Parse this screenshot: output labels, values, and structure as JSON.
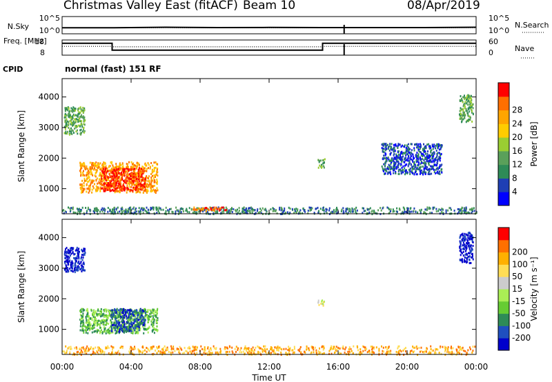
{
  "header": {
    "title": "Christmas Valley East (fitACF)",
    "beam": "Beam 10",
    "date": "08/Apr/2019"
  },
  "chart_data": [
    {
      "type": "line",
      "title": "",
      "left_label": "N.Sky",
      "right_label": "N.Search",
      "left_ticks": [
        "10^5",
        "10^0"
      ],
      "right_ticks": [
        "10^5",
        "10^0"
      ],
      "series": [
        {
          "name": "N.Sky",
          "style": "solid",
          "x": [
            0,
            3,
            6,
            9,
            12,
            15,
            16.3,
            16.4,
            18,
            21,
            24
          ],
          "y_frac": [
            0.35,
            0.35,
            0.38,
            0.36,
            0.37,
            0.36,
            0.36,
            0.36,
            0.36,
            0.36,
            0.38
          ]
        },
        {
          "name": "N.Search",
          "style": "dotted",
          "x": [
            0,
            24
          ],
          "y_frac": [
            0.35,
            0.35
          ]
        }
      ]
    },
    {
      "type": "line",
      "title": "",
      "left_label": "Freq. [MHz]",
      "right_label": "Nave",
      "left_ticks": [
        "18",
        "8"
      ],
      "right_ticks": [
        "60",
        "0"
      ],
      "series": [
        {
          "name": "Freq.",
          "style": "solid",
          "x": [
            0,
            2.9,
            2.9,
            15.1,
            15.1,
            24
          ],
          "y": [
            15.8,
            15.8,
            11.3,
            11.3,
            15.8,
            15.8
          ]
        },
        {
          "name": "Nave",
          "style": "dotted",
          "x": [
            0,
            2.9,
            2.9,
            15.1,
            15.1,
            24
          ],
          "y": [
            35,
            35,
            33,
            33,
            35,
            35
          ]
        }
      ]
    },
    {
      "type": "text",
      "left_label": "CPID",
      "value": "normal (fast) 151 RF"
    },
    {
      "type": "heatmap",
      "parameter": "power",
      "ylabel": "Slant Range [km]",
      "xlim": [
        0,
        24
      ],
      "ylim": [
        180,
        4600
      ],
      "yticks": [
        1000,
        2000,
        3000,
        4000
      ],
      "colorbar": {
        "label": "Power [dB]",
        "ticks": [
          "4",
          "8",
          "12",
          "16",
          "20",
          "24",
          "28"
        ],
        "colors": [
          "#0000ff",
          "#1f3fb4",
          "#2e8b57",
          "#5aa05a",
          "#9acd32",
          "#ffcc00",
          "#ffa500",
          "#ff6f00",
          "#ff0000"
        ]
      },
      "regions": [
        {
          "x": [
            1.0,
            5.5
          ],
          "y": [
            900,
            1900
          ],
          "level": 6
        },
        {
          "x": [
            2.2,
            4.8
          ],
          "y": [
            950,
            1700
          ],
          "level": 8
        },
        {
          "x": [
            0.1,
            1.3
          ],
          "y": [
            2800,
            3700
          ],
          "level": 3
        },
        {
          "x": [
            14.8,
            15.2
          ],
          "y": [
            1700,
            2000
          ],
          "level": 3
        },
        {
          "x": [
            23.0,
            23.8
          ],
          "y": [
            3200,
            4100
          ],
          "level": 3
        },
        {
          "x": [
            18.5,
            22.0
          ],
          "y": [
            1500,
            2500
          ],
          "level": 1
        },
        {
          "x": [
            0.0,
            24.0
          ],
          "y": [
            200,
            420
          ],
          "level": 2
        },
        {
          "x": [
            7.5,
            9.5
          ],
          "y": [
            300,
            420
          ],
          "level": 7
        }
      ]
    },
    {
      "type": "heatmap",
      "parameter": "velocity",
      "ylabel": "Slant Range [km]",
      "xlabel": "Time UT",
      "xlim": [
        0,
        24
      ],
      "ylim": [
        180,
        4600
      ],
      "yticks": [
        1000,
        2000,
        3000,
        4000
      ],
      "xticks": [
        "00:00",
        "04:00",
        "08:00",
        "12:00",
        "16:00",
        "20:00",
        "00:00"
      ],
      "colorbar": {
        "label": "Velocity [m s⁻¹]",
        "ticks": [
          "200",
          "100",
          "50",
          "15",
          "-15",
          "-50",
          "-100",
          "-200"
        ],
        "colors": [
          "#0000cc",
          "#1f4fbf",
          "#2e8b57",
          "#66cc33",
          "#aaee55",
          "#cccccc",
          "#ffdd55",
          "#ffb000",
          "#ff7000",
          "#ff0000"
        ]
      },
      "regions": [
        {
          "x": [
            1.0,
            5.5
          ],
          "y": [
            900,
            1700
          ],
          "level": 3
        },
        {
          "x": [
            2.8,
            4.8
          ],
          "y": [
            950,
            1700
          ],
          "level": 1
        },
        {
          "x": [
            0.1,
            1.3
          ],
          "y": [
            2900,
            3700
          ],
          "level": 0
        },
        {
          "x": [
            23.0,
            23.8
          ],
          "y": [
            3200,
            4200
          ],
          "level": 0
        },
        {
          "x": [
            14.8,
            15.2
          ],
          "y": [
            1800,
            2000
          ],
          "level": 5
        },
        {
          "x": [
            0.0,
            24.0
          ],
          "y": [
            200,
            480
          ],
          "level": 7
        }
      ]
    }
  ]
}
